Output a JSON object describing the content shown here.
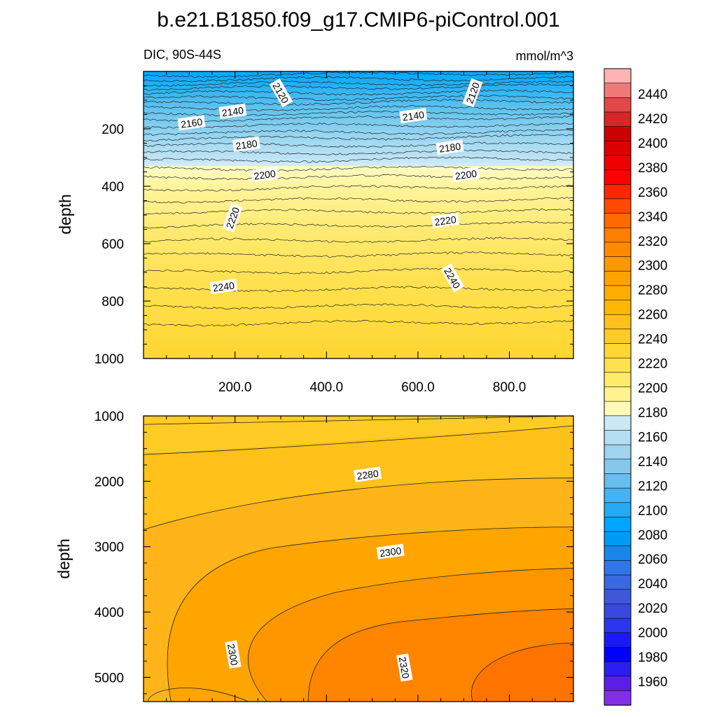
{
  "chart_data": [
    {
      "type": "contour",
      "title": "b.e21.B1850.f09_g17.CMIP6-piControl.001",
      "subtitle_left": "DIC, 90S-44S",
      "subtitle_right": "mmol/m^3",
      "ylabel": "depth",
      "xlim": [
        0,
        940
      ],
      "ylim": [
        0,
        1000
      ],
      "y_reversed": true,
      "xticks": [
        200,
        400,
        600,
        800
      ],
      "xtick_labels": [
        "200.0",
        "400.0",
        "600.0",
        "800.0"
      ],
      "yticks": [
        200,
        400,
        600,
        800,
        1000
      ],
      "ytick_labels": [
        "200",
        "400",
        "600",
        "800",
        "1000"
      ],
      "contour_interval": 10,
      "contour_labels": [
        {
          "text": "2120",
          "x": 300,
          "y": 75,
          "rotated": true
        },
        {
          "text": "2120",
          "x": 720,
          "y": 75,
          "rotated": true
        },
        {
          "text": "2140",
          "x": 195,
          "y": 140,
          "rotated": false
        },
        {
          "text": "2140",
          "x": 590,
          "y": 155,
          "rotated": false
        },
        {
          "text": "2160",
          "x": 105,
          "y": 180,
          "rotated": false
        },
        {
          "text": "2180",
          "x": 225,
          "y": 255,
          "rotated": false
        },
        {
          "text": "2180",
          "x": 670,
          "y": 265,
          "rotated": false
        },
        {
          "text": "2200",
          "x": 265,
          "y": 360,
          "rotated": false
        },
        {
          "text": "2200",
          "x": 705,
          "y": 360,
          "rotated": false
        },
        {
          "text": "2220",
          "x": 195,
          "y": 510,
          "rotated": true
        },
        {
          "text": "2220",
          "x": 660,
          "y": 520,
          "rotated": false
        },
        {
          "text": "2240",
          "x": 175,
          "y": 750,
          "rotated": false
        },
        {
          "text": "2240",
          "x": 675,
          "y": 720,
          "rotated": true
        }
      ]
    },
    {
      "type": "contour",
      "ylabel": "depth",
      "xlim": [
        0,
        940
      ],
      "ylim": [
        1000,
        5370
      ],
      "y_reversed": true,
      "yticks": [
        1000,
        2000,
        3000,
        4000,
        5000
      ],
      "ytick_labels": [
        "1000",
        "2000",
        "3000",
        "4000",
        "5000"
      ],
      "contour_labels": [
        {
          "text": "2280",
          "x": 490,
          "y": 1900,
          "rotated": false
        },
        {
          "text": "2300",
          "x": 540,
          "y": 3080,
          "rotated": false
        },
        {
          "text": "2300",
          "x": 195,
          "y": 4650,
          "rotated": true
        },
        {
          "text": "2320",
          "x": 570,
          "y": 4850,
          "rotated": true
        }
      ]
    },
    {
      "type": "colorbar",
      "labels": [
        "2440",
        "2420",
        "2400",
        "2380",
        "2360",
        "2340",
        "2320",
        "2300",
        "2280",
        "2260",
        "2240",
        "2220",
        "2200",
        "2180",
        "2160",
        "2140",
        "2120",
        "2100",
        "2080",
        "2060",
        "2040",
        "2020",
        "2000",
        "1980",
        "1960"
      ],
      "colors": [
        "#ffb3b3",
        "#f07878",
        "#e24848",
        "#d62626",
        "#cc0000",
        "#dd0000",
        "#ee0000",
        "#ff0000",
        "#ff2600",
        "#ff4a00",
        "#ff6a00",
        "#ff7f00",
        "#ff8a00",
        "#ff9800",
        "#ffa200",
        "#ffad00",
        "#ffb800",
        "#ffc21a",
        "#ffcc26",
        "#ffd633",
        "#ffe14d",
        "#ffeb6b",
        "#fff38f",
        "#fffab8",
        "#cde8f5",
        "#b5def2",
        "#9fd3ee",
        "#85c8ec",
        "#66bdee",
        "#45b3f2",
        "#24aaf5",
        "#00a5ff",
        "#009bf5",
        "#1a86ec",
        "#2f77e8",
        "#3a68e0",
        "#3f58d8",
        "#3a48e0",
        "#2a37ee",
        "#1a1af8",
        "#0000ff",
        "#2a1ef2",
        "#5a1ee8",
        "#8230e6"
      ]
    }
  ]
}
